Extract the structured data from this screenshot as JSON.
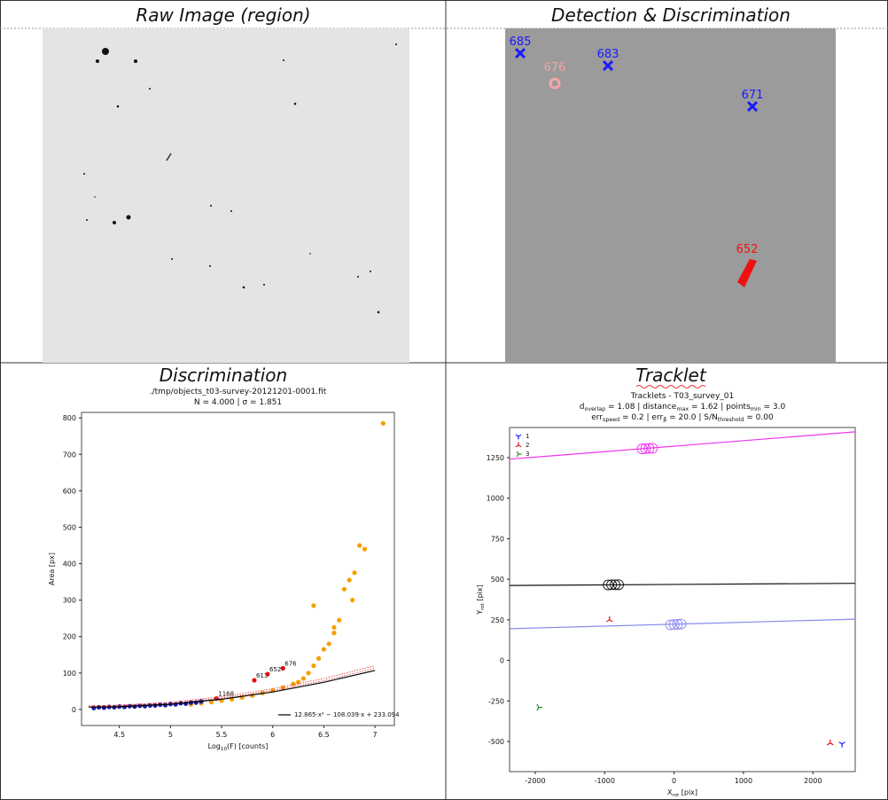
{
  "panels": [
    {
      "title": "Raw Image (region)"
    },
    {
      "title": "Detection & Discrimination",
      "labels": [
        {
          "text": "685",
          "color": "#1a1aff"
        },
        {
          "text": "683",
          "color": "#1a1aff"
        },
        {
          "text": "676",
          "color": "#f4a6a6"
        },
        {
          "text": "671",
          "color": "#1a1aff"
        },
        {
          "text": "652",
          "color": "#ee1111"
        }
      ]
    },
    {
      "title": "Discrimination"
    },
    {
      "title": "Tracklet"
    }
  ],
  "chart_data": [
    {
      "type": "scatter",
      "title": "./tmp/objects_t03-survey-20121201-0001.fit",
      "subtitle": [
        "N = 4.000 | σ = 1.851"
      ],
      "xlabel": "Log_{10}(F) [counts]",
      "ylabel": "Area [px]",
      "xlim": [
        4.13,
        7.19
      ],
      "ylim": [
        -44,
        815
      ],
      "xticks": [
        4.5,
        5.0,
        5.5,
        6.0,
        6.5,
        7.0
      ],
      "yticks": [
        0,
        100,
        200,
        300,
        400,
        500,
        600,
        700,
        800
      ],
      "legend": "lower right",
      "series": [
        {
          "kind": "points",
          "color": "#f59f00",
          "x": [
            5.2,
            5.3,
            5.4,
            5.5,
            5.6,
            5.7,
            5.8,
            5.9,
            6.0,
            6.1,
            6.2,
            6.25,
            6.3,
            6.35,
            6.4,
            6.45,
            6.4,
            6.5,
            6.55,
            6.6,
            6.6,
            6.65,
            6.7,
            6.75,
            6.78,
            6.8,
            6.85,
            6.9,
            7.08
          ],
          "values": [
            14,
            17,
            20,
            24,
            28,
            33,
            38,
            45,
            52,
            60,
            70,
            75,
            85,
            100,
            120,
            140,
            285,
            165,
            180,
            210,
            225,
            245,
            330,
            355,
            300,
            375,
            450,
            440,
            785
          ]
        },
        {
          "kind": "points",
          "color": "#1c1ca8",
          "x": [
            4.25,
            4.3,
            4.35,
            4.4,
            4.45,
            4.5,
            4.55,
            4.6,
            4.65,
            4.7,
            4.75,
            4.8,
            4.85,
            4.9,
            4.95,
            5.0,
            5.05,
            5.1,
            5.15,
            5.2,
            5.25,
            5.3
          ],
          "values": [
            4,
            6,
            5,
            7,
            6,
            8,
            7,
            9,
            8,
            10,
            9,
            11,
            11,
            13,
            12,
            15,
            14,
            17,
            16,
            19,
            19,
            22
          ]
        },
        {
          "kind": "points",
          "color": "#dd1111",
          "x": [
            5.45,
            5.82,
            5.95,
            6.1
          ],
          "values": [
            30,
            80,
            97,
            113
          ],
          "point_labels": [
            "1168",
            "613",
            "652",
            "676"
          ]
        },
        {
          "kind": "dotted",
          "color": "#dd3333",
          "x": [
            4.2,
            4.5,
            5.0,
            5.5,
            6.0,
            6.5,
            7.0
          ],
          "values": [
            10,
            12,
            20,
            35,
            57,
            85,
            120
          ]
        },
        {
          "kind": "dotted",
          "color": "#dd3333",
          "x": [
            4.2,
            4.5,
            5.0,
            5.5,
            6.0,
            6.5,
            7.0
          ],
          "values": [
            8,
            10,
            17,
            31,
            52,
            79,
            113
          ]
        },
        {
          "kind": "line",
          "color": "#000000",
          "name": "12.865·x² − 108.039·x + 233.094",
          "x": [
            4.2,
            4.5,
            5.0,
            5.5,
            6.0,
            6.5,
            7.0
          ],
          "values": [
            6.3,
            7.4,
            14.5,
            28.1,
            48.0,
            74.4,
            107.2
          ]
        }
      ]
    },
    {
      "type": "scatter",
      "title": "Tracklets - T03_survey_01",
      "subtitle": [
        "d_{overlap} = 1.08 | distance_{max} = 1.62 | points_{min} = 3.0",
        "err_{speed} = 0.2 | err_{β} = 20.0 | S/N_{threshold} = 0.00"
      ],
      "xlabel": "X_{rot} [pix]",
      "ylabel": "Y_{rot} [pix]",
      "xlim": [
        -2370,
        2610
      ],
      "ylim": [
        -686,
        1436
      ],
      "xticks": [
        -2000,
        -1000,
        0,
        1000,
        2000
      ],
      "yticks": [
        -500,
        -250,
        0,
        250,
        500,
        750,
        1000,
        1250
      ],
      "legend": "upper left",
      "series": [
        {
          "kind": "line",
          "color": "#ee33ee",
          "x": [
            -2370,
            2610
          ],
          "values": [
            1241,
            1409
          ]
        },
        {
          "kind": "line",
          "color": "#111111",
          "x": [
            -2370,
            2610
          ],
          "values": [
            462,
            475
          ]
        },
        {
          "kind": "line",
          "color": "#8888ee",
          "x": [
            -2370,
            2610
          ],
          "values": [
            195,
            254
          ]
        },
        {
          "kind": "rings",
          "color": "#ee33ee",
          "x": [
            -460,
            -410,
            -360,
            -310
          ],
          "values": [
            1304,
            1306,
            1307,
            1308
          ]
        },
        {
          "kind": "rings",
          "color": "#111111",
          "x": [
            -950,
            -900,
            -850,
            -800
          ],
          "values": [
            465,
            466,
            466,
            466
          ]
        },
        {
          "kind": "rings",
          "color": "#8888ee",
          "x": [
            -50,
            0,
            50,
            100
          ],
          "values": [
            219,
            221,
            222,
            224
          ]
        },
        {
          "kind": "marker",
          "marker": "tri_down",
          "name": "1",
          "color": "#1a1aff",
          "x": [
            2420
          ],
          "values": [
            -515
          ]
        },
        {
          "kind": "marker",
          "marker": "tri_up",
          "name": "2",
          "color": "#dd1111",
          "x": [
            -930,
            2250
          ],
          "values": [
            250,
            -510
          ]
        },
        {
          "kind": "marker",
          "marker": "tri_left",
          "name": "3",
          "color": "#228822",
          "x": [
            -1950
          ],
          "values": [
            -290
          ]
        }
      ]
    }
  ]
}
